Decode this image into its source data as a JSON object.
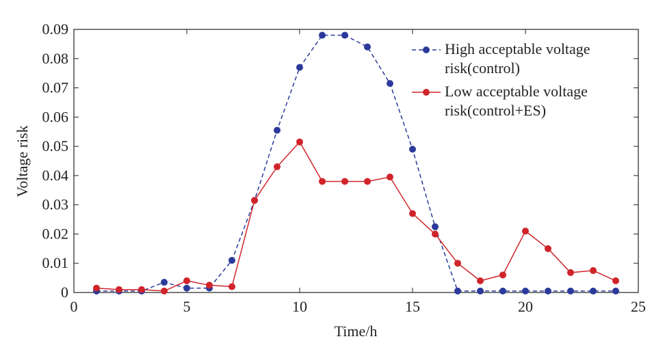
{
  "chart_data": {
    "type": "line",
    "x_label": "Time/h",
    "y_label": "Voltage risk",
    "x": [
      1,
      2,
      3,
      4,
      5,
      6,
      7,
      8,
      9,
      10,
      11,
      12,
      13,
      14,
      15,
      16,
      17,
      18,
      19,
      20,
      21,
      22,
      23,
      24
    ],
    "series": [
      {
        "name": "High acceptable voltage risk(control)",
        "color": "#2b3a9a",
        "dashed": true,
        "values": [
          0.0005,
          0.0005,
          0.0005,
          0.0035,
          0.0015,
          0.0015,
          0.011,
          0.0315,
          0.0555,
          0.077,
          0.088,
          0.088,
          0.084,
          0.0715,
          0.049,
          0.0225,
          0.0005,
          0.0005,
          0.0005,
          0.0005,
          0.0005,
          0.0005,
          0.0005,
          0.0005
        ]
      },
      {
        "name": "Low acceptable voltage risk(control+ES)",
        "color": "#d0242b",
        "dashed": false,
        "values": [
          0.0015,
          0.001,
          0.001,
          0.0005,
          0.004,
          0.0025,
          0.002,
          0.0315,
          0.043,
          0.0515,
          0.038,
          0.038,
          0.038,
          0.0395,
          0.027,
          0.02,
          0.01,
          0.004,
          0.006,
          0.021,
          0.015,
          0.0068,
          0.0075,
          0.004
        ]
      }
    ],
    "xlim": [
      0,
      25
    ],
    "xticks": [
      0,
      5,
      10,
      15,
      20,
      25
    ],
    "ylim": [
      0,
      0.09
    ],
    "yticks": [
      0,
      0.01,
      0.02,
      0.03,
      0.04,
      0.05,
      0.06,
      0.07,
      0.08,
      0.09
    ],
    "legend": "upper right"
  }
}
